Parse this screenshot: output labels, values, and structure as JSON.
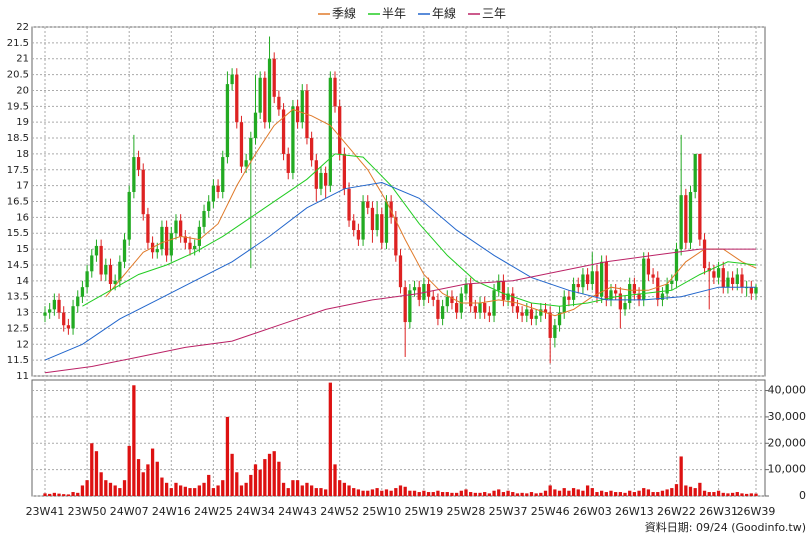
{
  "chart_data": {
    "type": "candlestick",
    "categories": [
      "23W41",
      null,
      null,
      null,
      null,
      null,
      null,
      null,
      null,
      "23W50",
      null,
      null,
      null,
      null,
      null,
      null,
      null,
      null,
      "24W07",
      null,
      null,
      null,
      null,
      null,
      null,
      null,
      null,
      "24W16",
      null,
      null,
      null,
      null,
      null,
      null,
      null,
      null,
      "24W25",
      null,
      null,
      null,
      null,
      null,
      null,
      null,
      null,
      "24W34",
      null,
      null,
      null,
      null,
      null,
      null,
      null,
      null,
      "24W43",
      null,
      null,
      null,
      null,
      null,
      null,
      null,
      null,
      "24W52",
      null,
      null,
      null,
      null,
      null,
      null,
      null,
      null,
      "25W10",
      null,
      null,
      null,
      null,
      null,
      null,
      null,
      null,
      "25W19",
      null,
      null,
      null,
      null,
      null,
      null,
      null,
      null,
      "25W28",
      null,
      null,
      null,
      null,
      null,
      null,
      null,
      null,
      "25W37",
      null,
      null,
      null,
      null,
      null,
      null,
      null,
      null,
      "25W46",
      null,
      null,
      null,
      null,
      null,
      null,
      null,
      null,
      "26W03",
      null,
      null,
      null,
      null,
      null,
      null,
      null,
      null,
      "26W13",
      null,
      null,
      null,
      null,
      null,
      null,
      null,
      null,
      "26W22",
      null,
      null,
      null,
      null,
      null,
      null,
      null,
      null,
      "26W31",
      null,
      null,
      null,
      null,
      null,
      null,
      null,
      "26W39"
    ],
    "open": [
      12.9,
      13.0,
      13.1,
      13.4,
      13.0,
      12.6,
      12.5,
      13.2,
      13.5,
      13.8,
      14.3,
      14.8,
      15.1,
      14.2,
      14.5,
      13.9,
      14.0,
      14.6,
      15.3,
      16.8,
      17.9,
      17.5,
      16.1,
      15.2,
      14.9,
      15.0,
      15.7,
      14.8,
      15.5,
      15.9,
      15.4,
      15.2,
      15.0,
      15.1,
      15.7,
      16.2,
      16.5,
      17.0,
      16.8,
      17.9,
      20.2,
      20.5,
      19.0,
      17.6,
      17.8,
      18.5,
      19.3,
      20.4,
      19.0,
      21.0,
      19.8,
      19.4,
      18.0,
      17.4,
      19.5,
      19.0,
      20.0,
      18.5,
      17.8,
      16.9,
      17.4,
      17.0,
      20.4,
      19.5,
      18.0,
      16.9,
      15.9,
      15.6,
      15.3,
      16.5,
      16.3,
      15.6,
      16.1,
      15.2,
      16.5,
      16.0,
      14.8,
      13.8,
      12.7,
      13.7,
      13.8,
      13.4,
      13.9,
      13.5,
      13.4,
      12.8,
      13.2,
      13.5,
      13.3,
      13.0,
      13.6,
      13.9,
      13.2,
      13.0,
      13.3,
      13.0,
      12.9,
      13.7,
      14.0,
      13.4,
      13.6,
      13.2,
      13.0,
      12.9,
      13.1,
      12.8,
      12.9,
      13.1,
      13.0,
      12.2,
      12.6,
      13.0,
      13.5,
      13.4,
      13.9,
      13.8,
      14.2,
      13.9,
      14.3,
      13.5,
      14.6,
      13.4,
      13.7,
      13.6,
      13.1,
      13.3,
      13.9,
      13.6,
      13.4,
      14.7,
      14.2,
      14.1,
      13.4,
      13.6,
      13.9,
      14.0,
      15.0,
      16.7,
      15.2,
      16.8,
      18.0,
      15.3,
      14.4,
      14.3,
      14.1,
      14.4,
      13.8,
      14.1,
      13.9,
      14.2,
      13.8,
      13.8,
      13.6
    ],
    "high": [
      13.2,
      13.3,
      13.6,
      13.6,
      13.2,
      12.8,
      13.4,
      13.7,
      14.0,
      14.5,
      15.0,
      15.3,
      15.3,
      14.7,
      14.7,
      14.2,
      14.8,
      15.5,
      17.0,
      18.6,
      18.1,
      17.7,
      16.3,
      15.4,
      15.2,
      15.9,
      15.9,
      15.7,
      16.1,
      16.1,
      15.6,
      15.4,
      15.3,
      15.9,
      16.4,
      16.7,
      17.2,
      17.2,
      18.1,
      20.6,
      20.7,
      20.7,
      19.2,
      18.0,
      18.7,
      20.5,
      20.6,
      20.6,
      21.7,
      21.2,
      20.0,
      19.6,
      18.2,
      19.7,
      19.7,
      20.2,
      20.2,
      18.7,
      18.0,
      17.6,
      17.6,
      20.6,
      20.6,
      19.7,
      18.2,
      17.1,
      16.1,
      15.8,
      16.7,
      16.7,
      16.5,
      16.5,
      16.3,
      16.7,
      16.7,
      16.2,
      15.0,
      14.0,
      13.9,
      14.0,
      14.0,
      14.1,
      14.1,
      13.7,
      13.6,
      13.4,
      13.7,
      13.7,
      13.5,
      13.8,
      14.1,
      14.1,
      13.4,
      13.5,
      13.5,
      13.2,
      13.9,
      14.2,
      14.2,
      13.8,
      13.8,
      13.4,
      13.2,
      13.3,
      13.3,
      13.1,
      13.3,
      13.3,
      13.2,
      12.8,
      13.2,
      13.7,
      13.7,
      14.1,
      14.1,
      14.4,
      14.4,
      14.9,
      14.5,
      14.8,
      14.8,
      13.9,
      13.9,
      13.8,
      13.5,
      14.1,
      14.1,
      13.8,
      14.9,
      14.9,
      14.4,
      14.3,
      13.8,
      14.1,
      14.2,
      15.2,
      18.6,
      16.9,
      17.0,
      18.0,
      18.0,
      15.5,
      14.6,
      14.5,
      14.6,
      14.6,
      14.3,
      14.3,
      14.4,
      14.4,
      14.0,
      14.0,
      13.9
    ],
    "low": [
      12.7,
      12.8,
      12.9,
      12.8,
      12.4,
      12.3,
      12.3,
      13.0,
      13.3,
      13.6,
      14.1,
      14.6,
      14.0,
      14.0,
      13.7,
      13.7,
      13.8,
      14.4,
      15.1,
      16.6,
      17.3,
      15.9,
      15.0,
      14.7,
      14.7,
      14.8,
      14.6,
      14.6,
      15.3,
      15.2,
      15.0,
      14.8,
      14.8,
      14.9,
      15.5,
      16.0,
      16.3,
      16.6,
      16.6,
      17.7,
      20.0,
      18.8,
      17.4,
      17.4,
      14.4,
      18.3,
      19.1,
      18.8,
      18.8,
      19.6,
      19.2,
      17.8,
      17.2,
      17.2,
      18.8,
      18.8,
      18.3,
      17.6,
      16.5,
      16.7,
      16.6,
      16.8,
      19.3,
      17.8,
      16.7,
      15.7,
      15.4,
      15.1,
      15.1,
      16.1,
      15.2,
      15.4,
      15.0,
      15.0,
      15.8,
      14.6,
      13.6,
      11.6,
      12.5,
      13.5,
      13.2,
      13.2,
      13.3,
      13.2,
      12.6,
      12.6,
      13.0,
      13.1,
      12.8,
      12.8,
      13.4,
      13.0,
      12.8,
      12.8,
      12.8,
      12.7,
      12.7,
      13.5,
      13.2,
      13.2,
      13.0,
      12.8,
      12.7,
      12.7,
      12.6,
      12.6,
      12.7,
      12.8,
      11.4,
      11.9,
      12.4,
      12.8,
      13.2,
      13.2,
      13.6,
      13.6,
      13.7,
      13.7,
      13.3,
      13.3,
      13.2,
      13.2,
      13.4,
      12.5,
      12.9,
      13.1,
      13.4,
      13.2,
      13.2,
      14.0,
      13.9,
      13.2,
      13.2,
      13.4,
      13.7,
      13.8,
      14.8,
      15.0,
      15.0,
      16.6,
      15.1,
      14.2,
      13.1,
      13.9,
      13.9,
      13.6,
      13.6,
      13.7,
      13.7,
      13.6,
      13.5,
      13.4,
      13.4
    ],
    "close": [
      13.0,
      13.1,
      13.4,
      13.0,
      12.6,
      12.5,
      13.2,
      13.5,
      13.8,
      14.3,
      14.8,
      15.1,
      14.2,
      14.5,
      13.9,
      14.0,
      14.6,
      15.3,
      16.8,
      17.9,
      17.5,
      16.1,
      15.2,
      14.9,
      15.0,
      15.7,
      14.8,
      15.5,
      15.9,
      15.4,
      15.2,
      15.0,
      15.1,
      15.7,
      16.2,
      16.5,
      17.0,
      16.8,
      17.9,
      20.2,
      20.5,
      19.0,
      17.6,
      17.8,
      18.5,
      19.3,
      20.4,
      19.0,
      21.0,
      19.8,
      19.4,
      18.0,
      17.4,
      19.5,
      19.0,
      20.0,
      18.5,
      17.8,
      16.9,
      17.4,
      17.0,
      20.4,
      19.5,
      18.0,
      16.9,
      15.9,
      15.6,
      15.3,
      16.5,
      16.3,
      15.6,
      16.1,
      15.2,
      16.5,
      16.0,
      14.8,
      13.8,
      12.7,
      13.7,
      13.8,
      13.4,
      13.9,
      13.5,
      13.4,
      12.8,
      13.2,
      13.5,
      13.3,
      13.0,
      13.6,
      13.9,
      13.2,
      13.0,
      13.3,
      13.0,
      12.9,
      13.7,
      14.0,
      13.4,
      13.6,
      13.2,
      13.0,
      12.9,
      13.1,
      12.8,
      12.9,
      13.1,
      13.0,
      12.2,
      12.6,
      13.0,
      13.5,
      13.4,
      13.9,
      13.8,
      14.2,
      13.9,
      14.3,
      13.5,
      14.6,
      13.4,
      13.7,
      13.6,
      13.1,
      13.3,
      13.9,
      13.6,
      13.4,
      14.7,
      14.2,
      14.1,
      13.4,
      13.6,
      13.9,
      14.0,
      15.0,
      16.7,
      15.2,
      16.8,
      18.0,
      15.3,
      14.4,
      14.3,
      14.1,
      14.4,
      13.8,
      14.1,
      13.9,
      14.2,
      13.8,
      13.8,
      13.6,
      13.8
    ],
    "volume": [
      1000,
      800,
      1200,
      900,
      700,
      600,
      1500,
      1200,
      4000,
      6000,
      20000,
      17000,
      9000,
      6000,
      5000,
      4000,
      3000,
      6000,
      19000,
      42000,
      14000,
      9000,
      12000,
      18000,
      13000,
      7000,
      5000,
      3000,
      5000,
      4000,
      3500,
      3000,
      3000,
      4000,
      5000,
      8000,
      3000,
      4000,
      6000,
      30000,
      16000,
      9000,
      4000,
      5000,
      8000,
      12000,
      10000,
      14000,
      16000,
      17000,
      13000,
      5000,
      3000,
      6000,
      6000,
      4000,
      5000,
      4000,
      3000,
      3000,
      2500,
      43000,
      12000,
      6000,
      5000,
      4000,
      3000,
      2500,
      2000,
      2000,
      2500,
      3000,
      2000,
      2500,
      2000,
      3000,
      4000,
      3500,
      2000,
      2000,
      1500,
      2000,
      1500,
      1500,
      2000,
      1500,
      1500,
      1200,
      1200,
      2000,
      2500,
      1500,
      1200,
      1200,
      1500,
      1000,
      2000,
      2500,
      1500,
      2000,
      1500,
      1000,
      1200,
      1000,
      1500,
      1000,
      1200,
      2000,
      4000,
      2500,
      2000,
      3000,
      2000,
      3000,
      2500,
      2000,
      4000,
      3000,
      1500,
      2000,
      1500,
      2000,
      1500,
      1500,
      1200,
      2000,
      1500,
      2000,
      3000,
      2500,
      1500,
      1500,
      2000,
      2500,
      3000,
      4500,
      15000,
      4000,
      3500,
      3000,
      5000,
      2000,
      1500,
      1500,
      2000,
      1200,
      1000,
      1200,
      1500,
      1000,
      800,
      1000,
      900
    ],
    "up_color": "#22aa22",
    "down_color": "#dd2222",
    "volume_color": "#dd1111",
    "series": [
      {
        "name": "季線",
        "color": "#e07a2a",
        "x": [
          13,
          17,
          21,
          25,
          29,
          33,
          37,
          41,
          45,
          49,
          53,
          57,
          61,
          65,
          69,
          73,
          77,
          81,
          85,
          89,
          93,
          97,
          101,
          105,
          109,
          113,
          117,
          121,
          125,
          129,
          133,
          137,
          141,
          145,
          149,
          152
        ],
        "values": [
          13.5,
          14.2,
          14.9,
          15.2,
          15.4,
          15.3,
          15.8,
          17.0,
          18.0,
          18.9,
          19.4,
          19.2,
          18.9,
          18.2,
          17.5,
          16.5,
          15.3,
          14.2,
          13.6,
          13.3,
          13.3,
          13.4,
          13.3,
          13.1,
          12.9,
          13.1,
          13.5,
          13.8,
          13.7,
          13.7,
          13.9,
          14.6,
          15.0,
          15.0,
          14.6,
          14.4
        ]
      },
      {
        "name": "半年",
        "color": "#22cc22",
        "x": [
          8,
          14,
          20,
          26,
          32,
          38,
          44,
          50,
          56,
          62,
          68,
          74,
          80,
          86,
          92,
          98,
          104,
          110,
          116,
          122,
          128,
          134,
          140,
          146,
          152
        ],
        "values": [
          13.2,
          13.7,
          14.2,
          14.5,
          14.9,
          15.4,
          16.0,
          16.6,
          17.2,
          18.0,
          17.9,
          17.0,
          15.8,
          14.8,
          14.0,
          13.6,
          13.3,
          13.2,
          13.3,
          13.5,
          13.6,
          13.7,
          14.2,
          14.6,
          14.5
        ]
      },
      {
        "name": "年線",
        "color": "#2266cc",
        "x": [
          0,
          8,
          16,
          24,
          32,
          40,
          48,
          56,
          64,
          72,
          80,
          88,
          96,
          104,
          112,
          120,
          128,
          136,
          144,
          152
        ],
        "values": [
          11.5,
          12.0,
          12.8,
          13.4,
          14.0,
          14.6,
          15.4,
          16.3,
          16.9,
          17.1,
          16.6,
          15.6,
          14.8,
          14.1,
          13.7,
          13.4,
          13.4,
          13.5,
          13.8,
          13.8
        ]
      },
      {
        "name": "三年",
        "color": "#bb2266",
        "x": [
          0,
          10,
          20,
          30,
          40,
          50,
          60,
          70,
          80,
          90,
          100,
          110,
          120,
          130,
          140,
          152
        ],
        "values": [
          11.1,
          11.3,
          11.6,
          11.9,
          12.1,
          12.6,
          13.1,
          13.4,
          13.6,
          13.9,
          14.0,
          14.3,
          14.6,
          14.8,
          15.0,
          15.0
        ]
      }
    ],
    "ylim": [
      11,
      22
    ],
    "yticks": [
      11,
      11.5,
      12,
      12.5,
      13,
      13.5,
      14,
      14.5,
      15,
      15.5,
      16,
      16.5,
      17,
      17.5,
      18,
      18.5,
      19,
      19.5,
      20,
      20.5,
      21,
      21.5,
      22
    ],
    "y2lim": [
      0,
      44000
    ],
    "y2ticks": [
      0,
      {
        "value": 10000,
        "label": "10,000"
      },
      {
        "value": 20000,
        "label": "20,000"
      },
      {
        "value": 30000,
        "label": "30,000"
      },
      {
        "value": 40000,
        "label": "40,000"
      }
    ],
    "grid": true,
    "note": "資料日期: 09/24  (Goodinfo.tw)"
  }
}
